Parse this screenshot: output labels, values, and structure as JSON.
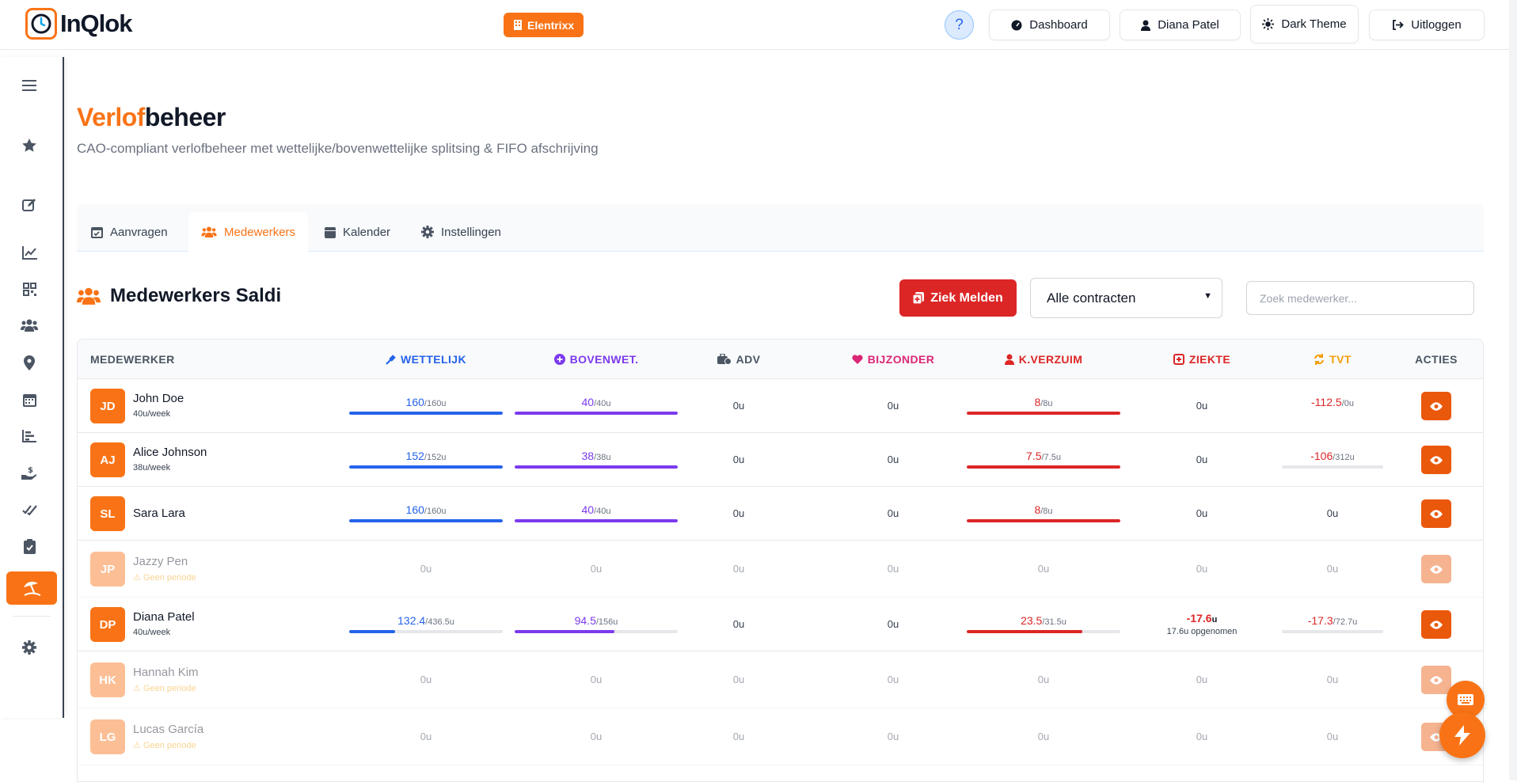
{
  "app": {
    "logo_text": "InQlok",
    "company": "Elentrixx"
  },
  "header_buttons": {
    "help": "?",
    "dashboard": "Dashboard",
    "user": "Diana Patel",
    "theme": "Dark Theme",
    "logout": "Uitloggen"
  },
  "page": {
    "title_part1": "Verlof",
    "title_part2": "beheer",
    "subtitle": "CAO-compliant verlofbeheer met wettelijke/bovenwettelijke splitsing & FIFO afschrijving"
  },
  "tabs": [
    {
      "label": "Aanvragen",
      "icon": "calendar-check-icon"
    },
    {
      "label": "Medewerkers",
      "icon": "users-icon"
    },
    {
      "label": "Kalender",
      "icon": "calendar-icon"
    },
    {
      "label": "Instellingen",
      "icon": "gear-icon"
    }
  ],
  "section": {
    "title": "Medewerkers Saldi",
    "sick_button": "Ziek Melden",
    "contract_select": "Alle contracten",
    "search_placeholder": "Zoek medewerker..."
  },
  "colors": {
    "accent": "#f97316",
    "wettelijk": "#2563eb",
    "bovenwet": "#7c3aed",
    "bijzonder": "#db2777",
    "verzuim": "#dc2626",
    "tvt": "#f59e0b"
  },
  "columns": {
    "medewerker": "MEDEWERKER",
    "wettelijk": "WETTELIJK",
    "bovenwet": "BOVENWET.",
    "adv": "ADV",
    "bijzonder": "BIJZONDER",
    "kverzuim": "K.VERZUIM",
    "ziekte": "ZIEKTE",
    "tvt": "TVT",
    "acties": "ACTIES"
  },
  "rows": [
    {
      "initials": "JD",
      "name": "John Doe",
      "sub": "40u/week",
      "wet_val": "160",
      "wet_tot": "/160u",
      "wet_pct": 1.0,
      "bov_val": "40",
      "bov_tot": "/40u",
      "bov_pct": 1.0,
      "adv": "0u",
      "bijz": "0u",
      "kv_val": "8",
      "kv_tot": "/8u",
      "kv_pct": 1.0,
      "ziekte": "0u",
      "tvt_val": "-112.5",
      "tvt_tot": "/0u"
    },
    {
      "initials": "AJ",
      "name": "Alice Johnson",
      "sub": "38u/week",
      "wet_val": "152",
      "wet_tot": "/152u",
      "wet_pct": 1.0,
      "bov_val": "38",
      "bov_tot": "/38u",
      "bov_pct": 1.0,
      "adv": "0u",
      "bijz": "0u",
      "kv_val": "7.5",
      "kv_tot": "/7.5u",
      "kv_pct": 1.0,
      "ziekte": "0u",
      "tvt_val": "-106",
      "tvt_tot": "/312u",
      "tvt_pct": 0
    },
    {
      "initials": "SL",
      "name": "Sara Lara",
      "wet_val": "160",
      "wet_tot": "/160u",
      "wet_pct": 1.0,
      "bov_val": "40",
      "bov_tot": "/40u",
      "bov_pct": 1.0,
      "adv": "0u",
      "bijz": "0u",
      "kv_val": "8",
      "kv_tot": "/8u",
      "kv_pct": 1.0,
      "ziekte": "0u",
      "tvt": "0u"
    },
    {
      "initials": "JP",
      "name": "Jazzy Pen",
      "warn": "Geen periode",
      "zero": "0u"
    },
    {
      "initials": "DP",
      "name": "Diana Patel",
      "sub": "40u/week",
      "wet_val": "132.4",
      "wet_tot": "/436.5u",
      "wet_pct": 0.3,
      "bov_val": "94.5",
      "bov_tot": "/156u",
      "bov_pct": 0.61,
      "adv": "0u",
      "bijz": "0u",
      "kv_val": "23.5",
      "kv_tot": "/31.5u",
      "kv_pct": 0.75,
      "ziekte_val": "-17.6",
      "ziekte_unit": "u",
      "ziekte_note": "17.6u opgenomen",
      "tvt_val": "-17.3",
      "tvt_tot": "/72.7u",
      "tvt_pct": 0
    },
    {
      "initials": "HK",
      "name": "Hannah Kim",
      "warn": "Geen periode",
      "zero": "0u"
    },
    {
      "initials": "LG",
      "name": "Lucas García",
      "warn": "Geen periode",
      "zero": "0u"
    }
  ]
}
